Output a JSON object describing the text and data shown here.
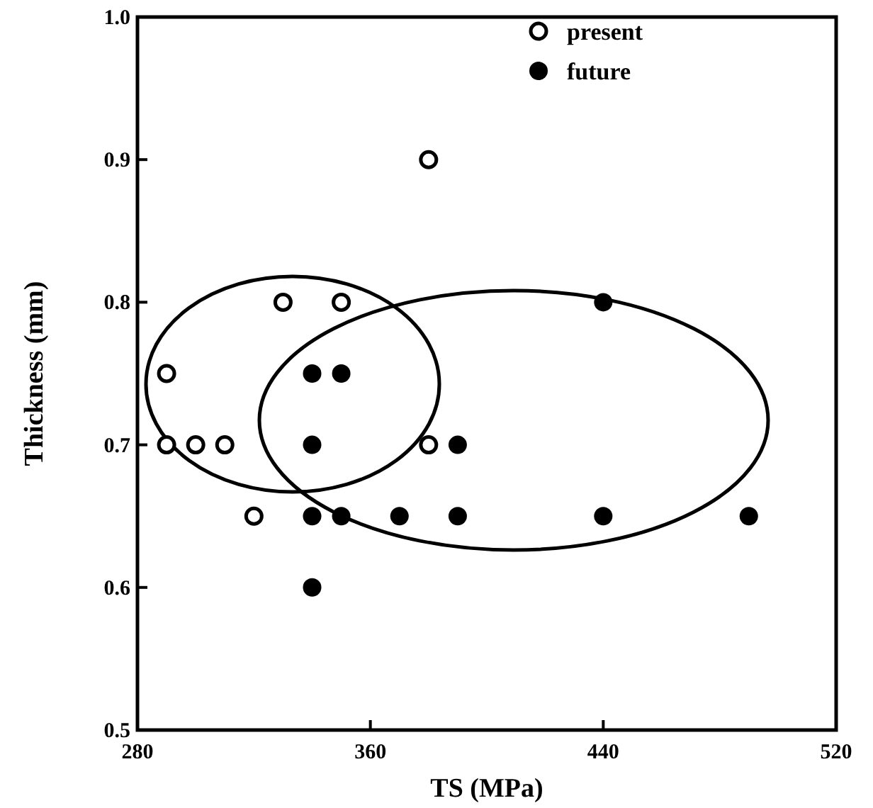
{
  "chart_data": {
    "type": "scatter",
    "xlabel": "TS (MPa)",
    "ylabel": "Thickness (mm)",
    "xlim": [
      280,
      520
    ],
    "xticks": [
      280,
      360,
      440,
      520
    ],
    "ylim": [
      0.5,
      1.0
    ],
    "yticks": [
      0.5,
      0.6,
      0.7,
      0.8,
      0.9,
      {
        "value": 1.0,
        "label": "1.0"
      }
    ],
    "legend": "top right",
    "grid": false,
    "series": [
      {
        "name": "present",
        "color": "#000000",
        "marker": "circle-open",
        "x": [
          290,
          290,
          300,
          310,
          320,
          330,
          350,
          380,
          380
        ],
        "values": [
          0.75,
          0.7,
          0.7,
          0.7,
          0.65,
          0.8,
          0.8,
          0.9,
          0.7
        ]
      },
      {
        "name": "future",
        "color": "#000000",
        "marker": "circle",
        "x": [
          340,
          350,
          340,
          340,
          350,
          370,
          390,
          390,
          340,
          440,
          440,
          490
        ],
        "values": [
          0.75,
          0.75,
          0.7,
          0.65,
          0.65,
          0.65,
          0.65,
          0.7,
          0.6,
          0.8,
          0.65,
          0.65
        ]
      }
    ]
  }
}
